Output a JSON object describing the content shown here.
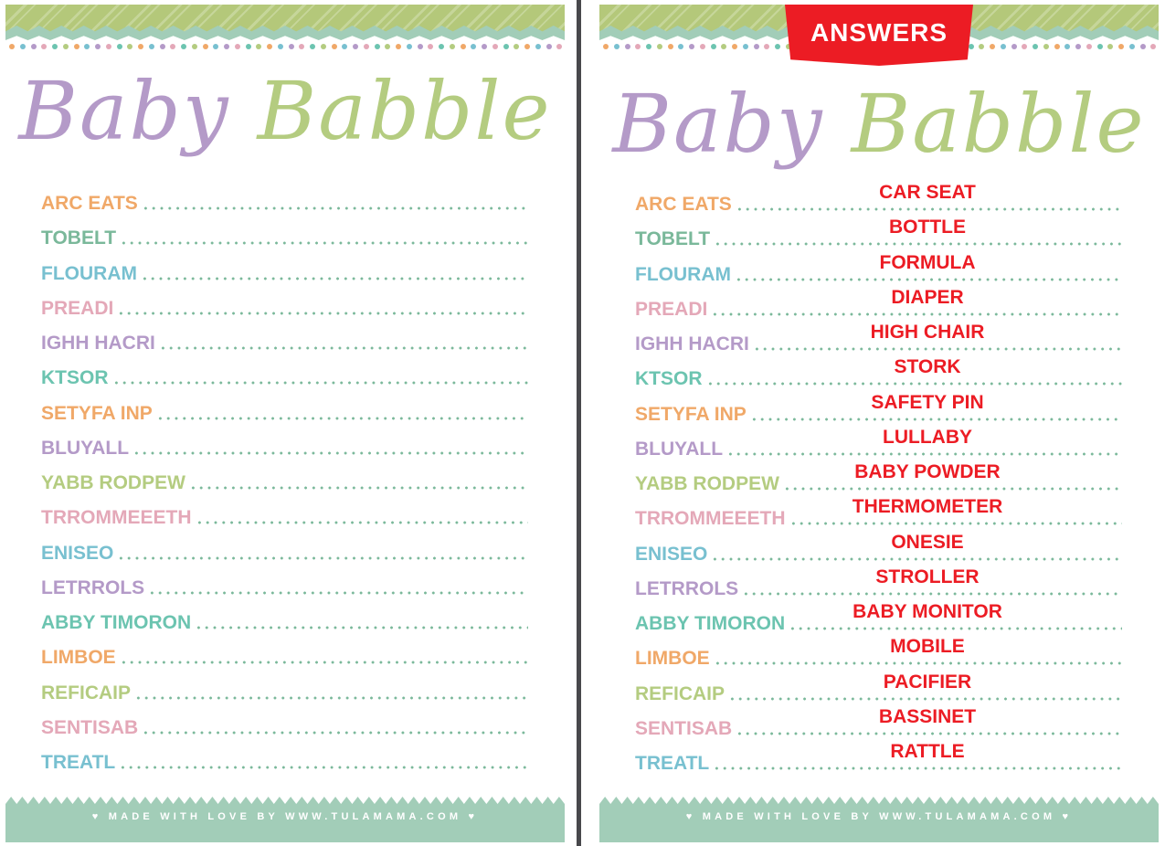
{
  "title": {
    "part1": "Baby",
    "part2": "Babble"
  },
  "answers_banner": "ANSWERS",
  "footer": "♥  MADE WITH LOVE BY WWW.TULAMAMA.COM  ♥",
  "colors": {
    "orange": "#f0a868",
    "sage": "#7ab89a",
    "blue": "#78c0d0",
    "pink": "#e4a8b8",
    "purple": "#b49ac8",
    "olive": "#b4cc80",
    "teal": "#6cc4b0",
    "answer": "#ec1c24",
    "mint": "#a2cdb8"
  },
  "items": [
    {
      "scrambled": "ARC EATS",
      "answer": "CAR SEAT",
      "color": "#f0a868"
    },
    {
      "scrambled": "TOBELT",
      "answer": "BOTTLE",
      "color": "#7ab89a"
    },
    {
      "scrambled": "FLOURAM",
      "answer": "FORMULA",
      "color": "#78c0d0"
    },
    {
      "scrambled": "PREADI",
      "answer": "DIAPER",
      "color": "#e4a8b8"
    },
    {
      "scrambled": "IGHH HACRI",
      "answer": "HIGH CHAIR",
      "color": "#b49ac8"
    },
    {
      "scrambled": "KTSOR",
      "answer": "STORK",
      "color": "#6cc4b0"
    },
    {
      "scrambled": "SETYFA INP",
      "answer": "SAFETY PIN",
      "color": "#f0a868"
    },
    {
      "scrambled": "BLUYALL",
      "answer": "LULLABY",
      "color": "#b49ac8"
    },
    {
      "scrambled": "YABB RODPEW",
      "answer": "BABY POWDER",
      "color": "#b4cc80"
    },
    {
      "scrambled": "TRROMMEEETH",
      "answer": "THERMOMETER",
      "color": "#e4a8b8"
    },
    {
      "scrambled": "ENISEO",
      "answer": "ONESIE",
      "color": "#78c0d0"
    },
    {
      "scrambled": "LETRROLS",
      "answer": "STROLLER",
      "color": "#b49ac8"
    },
    {
      "scrambled": "ABBY TIMORON",
      "answer": "BABY MONITOR",
      "color": "#6cc4b0"
    },
    {
      "scrambled": "LIMBOE",
      "answer": "MOBILE",
      "color": "#f0a868"
    },
    {
      "scrambled": "REFICAIP",
      "answer": "PACIFIER",
      "color": "#b4cc80"
    },
    {
      "scrambled": "SENTISAB",
      "answer": "BASSINET",
      "color": "#e4a8b8"
    },
    {
      "scrambled": "TREATL",
      "answer": "RATTLE",
      "color": "#78c0d0"
    }
  ]
}
